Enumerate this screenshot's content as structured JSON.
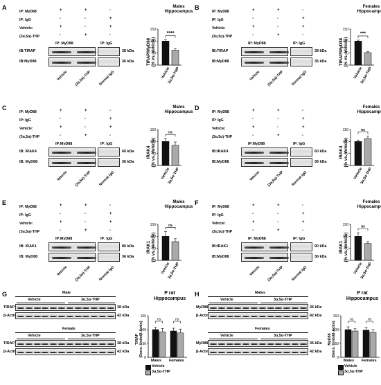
{
  "panels": {
    "A": {
      "label": "A",
      "title": [
        "Males",
        "Hippocampus"
      ],
      "rows": [
        "IP: MyD88",
        "IP: IgG",
        "Vehicle:",
        "(3α,5α)-THP"
      ],
      "symbols": [
        [
          "+",
          "+",
          "-"
        ],
        [
          "-",
          "-",
          "+"
        ],
        [
          "+",
          "-",
          "+"
        ],
        [
          "-",
          "+",
          "-"
        ]
      ],
      "ip1": "IP: MyD88",
      "ip2": "IP: IgG",
      "blots": [
        "IB:TIRAP",
        "IB:MyD88"
      ],
      "kda": [
        "38 kDa",
        "36 kDa"
      ],
      "lanes": [
        "Vehicle",
        "(3α,5α)-THP",
        "Normal IgG"
      ],
      "ylabel": [
        "TIRAP/MyD88",
        "(% vs. Vehicle)"
      ],
      "sig": "****",
      "xcats": [
        "Vehicle",
        "3α,5α-THP"
      ]
    },
    "B": {
      "label": "B",
      "title": [
        "Females",
        "Hippocampus"
      ],
      "rows": [
        "IP: MyD88",
        "IP: IgG",
        "Vehicle:",
        "(3α,5α)-THP"
      ],
      "symbols": [
        [
          "+",
          "+",
          "-"
        ],
        [
          "-",
          "-",
          "+"
        ],
        [
          "+",
          "-",
          "+"
        ],
        [
          "-",
          "+",
          "-"
        ]
      ],
      "ip1": "IP: MyD88",
      "ip2": "IP: IgG",
      "blots": [
        "IB:TIRAP",
        "IB:MyD88"
      ],
      "kda": [
        "38 kDa",
        "35 kDa"
      ],
      "lanes": [
        "Vehicle",
        "(3α,5α)-THP",
        "Normal IgG"
      ],
      "ylabel": [
        "TIRAP/MyD88",
        "(% vs. Vehicle)"
      ],
      "sig": "***",
      "xcats": [
        "Vehicle",
        "3α,5α-THP"
      ]
    },
    "C": {
      "label": "C",
      "title": [
        "Males",
        "Hippocampus"
      ],
      "rows": [
        "IP: MyD88",
        "IP: IgG",
        "Vehicle:",
        "(3α,5α)-THP"
      ],
      "symbols": [
        [
          "+",
          "+",
          "-"
        ],
        [
          "-",
          "-",
          "+"
        ],
        [
          "+",
          "-",
          "+"
        ],
        [
          "-",
          "+",
          "-"
        ]
      ],
      "ip1": "IP:MyD88",
      "ip2": "IP: IgG",
      "blots": [
        "IB: IRAK4",
        "IB: MyD88"
      ],
      "kda": [
        "60 kDa",
        "36 kDa"
      ],
      "lanes": [
        "Vehicle",
        "(3α,5α)-THP",
        "Normal IgG"
      ],
      "ylabel": [
        "IRAK4",
        "(% vs. Vehicle)"
      ],
      "sig": "ns",
      "xcats": [
        "Vehicle",
        "3α,5α-THP"
      ]
    },
    "D": {
      "label": "D",
      "title": [
        "Females",
        "Hippocampus"
      ],
      "rows": [
        "IP: MyD88",
        "IP: IgG",
        "Vehicle:",
        "(3α,5α)-THP"
      ],
      "symbols": [
        [
          "+",
          "+",
          "-"
        ],
        [
          "-",
          "-",
          "+"
        ],
        [
          "+",
          "-",
          "+"
        ],
        [
          "-",
          "+",
          "-"
        ]
      ],
      "ip1": "IP:MyD88",
      "ip2": "IP: IgG",
      "blots": [
        "IB:IRAK4",
        "IB:MyD88"
      ],
      "kda": [
        "60 kDa",
        "36 kDa"
      ],
      "lanes": [
        "Vehicle",
        "(3α,5α)-THP",
        "Normal IgG"
      ],
      "ylabel": [
        "IRAK4",
        "(% vs. Vehicle)"
      ],
      "sig": "ns",
      "xcats": [
        "Vehicle",
        "3α,5α-THP"
      ]
    },
    "E": {
      "label": "E",
      "title": [
        "Males",
        "Hippocampus"
      ],
      "rows": [
        "IP: MyD88",
        "IP: IgG",
        "Vehicle:",
        "(3α,5α)-THP"
      ],
      "symbols": [
        [
          "+",
          "+",
          "-"
        ],
        [
          "-",
          "-",
          "+"
        ],
        [
          "+",
          "-",
          "+"
        ],
        [
          "-",
          "+",
          "-"
        ]
      ],
      "ip1": "IP:MyD88",
      "ip2": "IP: IgG",
      "blots": [
        "IB: IRAK1",
        "IB: MyD88"
      ],
      "kda": [
        "80 kDa",
        "36 kDa"
      ],
      "lanes": [
        "Vehicle",
        "(3α,5α)-THP",
        "Normal IgG"
      ],
      "ylabel": [
        "IRAK1",
        "(% vs. Vehicle)"
      ],
      "sig": "ns",
      "xcats": [
        "Vehicle",
        "3α,5α-THP"
      ]
    },
    "F": {
      "label": "F",
      "title": [
        "Females",
        "Hippocampus"
      ],
      "rows": [
        "IP: MyD88",
        "IP: IgG",
        "Vehicle:",
        "(3α,5α)-THP"
      ],
      "symbols": [
        [
          "+",
          "+",
          "-"
        ],
        [
          "-",
          "-",
          "+"
        ],
        [
          "+",
          "-",
          "+"
        ],
        [
          "-",
          "+",
          "-"
        ]
      ],
      "ip1": "IP: MyD88",
      "ip2": "IP: IgG",
      "blots": [
        "IB:IRAK1",
        "IB:MyD88"
      ],
      "kda": [
        "90 kDa",
        "36 kDa"
      ],
      "lanes": [
        "Vehicle",
        "(3α,5α)-THP",
        "Normal IgG"
      ],
      "ylabel": [
        "IRAK1",
        "(% vs. Vehicle)"
      ],
      "sig": "ns",
      "xcats": [
        "Vehicle",
        "3α,5α-THP"
      ]
    },
    "G": {
      "label": "G",
      "title": [
        "P rat",
        "Hippocampus"
      ],
      "group1": "Male",
      "group2": "Female",
      "veh": "Vehicle",
      "thp": "3α,5α-THP",
      "blots1": [
        "TIRAP",
        "β-Actin"
      ],
      "kda1": [
        "38 kDa",
        "42 kDa"
      ],
      "blots2": [
        "TIRAP",
        "β-Actin"
      ],
      "kda2": [
        "38 kDa",
        "42 kDa"
      ],
      "ylabel": [
        "TIRAP",
        "(Dens. Units/β-Actin)"
      ],
      "sig": [
        "ns",
        "ns"
      ],
      "xcats": [
        "Males",
        "Females"
      ],
      "legend": [
        "Vehicle",
        "3α,5α-THP"
      ]
    },
    "H": {
      "label": "H",
      "title": [
        "P rat",
        "Hippocampus"
      ],
      "group1": "Males",
      "group2": "Females",
      "veh": "Vehicle",
      "thp": "3α,5α-THP",
      "blots1": [
        "MyD88",
        "β-Actin"
      ],
      "kda1": [
        "36 kDa",
        "42 kDa"
      ],
      "blots2": [
        "MyD88",
        "β-Actin"
      ],
      "kda2": [
        "36 kDa",
        "42 kDa"
      ],
      "ylabel": [
        "MyD88",
        "(Dens. Units/β-Actin)"
      ],
      "sig": [
        "ns",
        "ns"
      ],
      "xcats": [
        "Males",
        "Females"
      ],
      "legend": [
        "Vehicle",
        "3α,5α-THP"
      ]
    }
  },
  "chart_data": [
    {
      "panel": "A",
      "type": "bar",
      "categories": [
        "Vehicle",
        "3α,5α-THP"
      ],
      "values": [
        100,
        62
      ],
      "errors": [
        5,
        6
      ],
      "ylim": [
        0,
        150
      ],
      "yticks": [
        0,
        50,
        100,
        150
      ],
      "ylabel": "TIRAP/MyD88 (% vs. Vehicle)",
      "annotation": "****"
    },
    {
      "panel": "B",
      "type": "bar",
      "categories": [
        "Vehicle",
        "3α,5α-THP"
      ],
      "values": [
        100,
        52
      ],
      "errors": [
        4,
        4
      ],
      "ylim": [
        0,
        150
      ],
      "yticks": [
        0,
        50,
        100,
        150
      ],
      "ylabel": "TIRAP/MyD88 (% vs. Vehicle)",
      "annotation": "***"
    },
    {
      "panel": "C",
      "type": "bar",
      "categories": [
        "Vehicle",
        "3α,5α-THP"
      ],
      "values": [
        100,
        84
      ],
      "errors": [
        12,
        14
      ],
      "ylim": [
        0,
        150
      ],
      "yticks": [
        0,
        50,
        100,
        150
      ],
      "ylabel": "IRAK4 (% vs. Vehicle)",
      "annotation": "ns"
    },
    {
      "panel": "D",
      "type": "bar",
      "categories": [
        "Vehicle",
        "3α,5α-THP"
      ],
      "values": [
        100,
        112
      ],
      "errors": [
        6,
        10
      ],
      "ylim": [
        0,
        150
      ],
      "yticks": [
        0,
        50,
        100,
        150
      ],
      "ylabel": "IRAK4 (% vs. Vehicle)",
      "annotation": "ns"
    },
    {
      "panel": "E",
      "type": "bar",
      "categories": [
        "Vehicle",
        "3α,5α-THP"
      ],
      "values": [
        100,
        78
      ],
      "errors": [
        20,
        12
      ],
      "ylim": [
        0,
        150
      ],
      "yticks": [
        0,
        50,
        100,
        150
      ],
      "ylabel": "IRAK1 (% vs. Vehicle)",
      "annotation": "ns"
    },
    {
      "panel": "F",
      "type": "bar",
      "categories": [
        "Vehicle",
        "3α,5α-THP"
      ],
      "values": [
        100,
        70
      ],
      "errors": [
        15,
        8
      ],
      "ylim": [
        0,
        150
      ],
      "yticks": [
        0,
        50,
        100,
        150
      ],
      "ylabel": "IRAK1 (% vs. Vehicle)",
      "annotation": "ns"
    },
    {
      "panel": "G",
      "type": "bar",
      "categories": [
        "Males",
        "Females"
      ],
      "series": [
        {
          "name": "Vehicle",
          "values": [
            100,
            95
          ]
        },
        {
          "name": "3α,5α-THP",
          "values": [
            92,
            88
          ]
        }
      ],
      "errors": [
        [
          8,
          10
        ],
        [
          12,
          14
        ]
      ],
      "ylim": [
        0,
        150
      ],
      "yticks": [
        0,
        50,
        100,
        150
      ],
      "ylabel": "TIRAP (Dens. Units/β-Actin)",
      "annotation": [
        "ns",
        "ns"
      ]
    },
    {
      "panel": "H",
      "type": "bar",
      "categories": [
        "Males",
        "Females"
      ],
      "series": [
        {
          "name": "Vehicle",
          "values": [
            100,
            98
          ]
        },
        {
          "name": "3α,5α-THP",
          "values": [
            95,
            90
          ]
        }
      ],
      "errors": [
        [
          10,
          10
        ],
        [
          8,
          10
        ]
      ],
      "ylim": [
        0,
        150
      ],
      "yticks": [
        0,
        50,
        100,
        150
      ],
      "ylabel": "MyD88 (Dens. Units/β-Actin)",
      "annotation": [
        "ns",
        "ns"
      ]
    }
  ]
}
